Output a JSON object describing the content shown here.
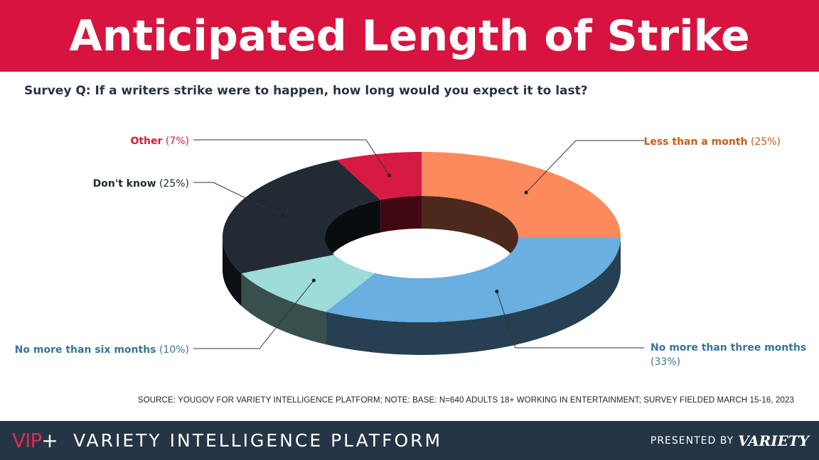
{
  "header": {
    "title": "Anticipated Length of Strike"
  },
  "question": "Survey Q: If a writers strike were to happen, how long would you expect it to last?",
  "chart_data": {
    "type": "pie",
    "variant": "3d-donut",
    "slices": [
      {
        "label": "Less than a month",
        "value": 25,
        "value_label": "(25%)",
        "color": "#fd8a5c"
      },
      {
        "label": "No more than three months",
        "value": 33,
        "value_label": "(33%)",
        "color": "#69afe0"
      },
      {
        "label": "No more than six months",
        "value": 10,
        "value_label": "(10%)",
        "color": "#9ddcd8"
      },
      {
        "label": "Don't know",
        "value": 25,
        "value_label": "(25%)",
        "color": "#222a34"
      },
      {
        "label": "Other",
        "value": 7,
        "value_label": "(7%)",
        "color": "#d71a43"
      }
    ],
    "label_colors": {
      "Less than a month": "#c75c13",
      "No more than three months": "#3a7396",
      "No more than six months": "#3a7396",
      "Don't know": "#222a34",
      "Other": "#d41a3f"
    }
  },
  "source": "SOURCE: YOUGOV FOR VARIETY INTELLIGENCE PLATFORM; NOTE: BASE: N=640 ADULTS 18+ WORKING IN ENTERTAINMENT; SURVEY FIELDED MARCH 15-16, 2023",
  "footer": {
    "vip": "VIP",
    "vip_plus": "+",
    "platform": "VARIETY INTELLIGENCE PLATFORM",
    "presented_by": "PRESENTED BY",
    "variety": "VARIETY"
  }
}
